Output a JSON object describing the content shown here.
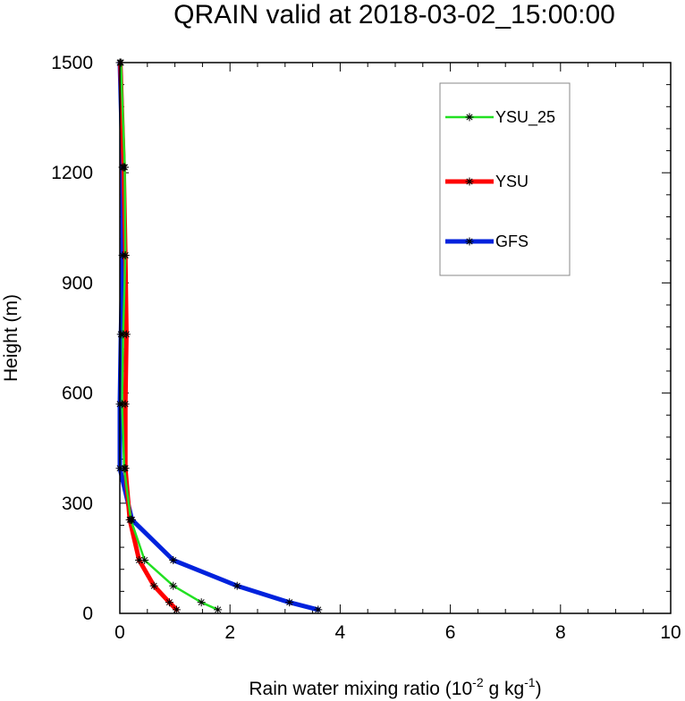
{
  "chart_data": {
    "type": "line",
    "title": "QRAIN valid at 2018-03-02_15:00:00",
    "xlabel_parts": {
      "base": "Rain water mixing ratio (10",
      "exp1": "-2",
      "mid": " g kg",
      "exp2": "-1",
      "end": ")"
    },
    "ylabel": "Height (m)",
    "xlim": [
      0,
      10
    ],
    "ylim": [
      0,
      1500
    ],
    "x_ticks": [
      0,
      2,
      4,
      6,
      8,
      10
    ],
    "y_ticks": [
      0,
      300,
      600,
      900,
      1200,
      1500
    ],
    "legend_position": "top-right",
    "series": [
      {
        "name": "YSU_25",
        "color": "#22e022",
        "width": 2.5,
        "points": [
          [
            1.78,
            10
          ],
          [
            1.48,
            30
          ],
          [
            0.97,
            75
          ],
          [
            0.45,
            145
          ],
          [
            0.2,
            255
          ],
          [
            0.08,
            395
          ],
          [
            0.04,
            570
          ],
          [
            0.06,
            760
          ],
          [
            0.1,
            975
          ],
          [
            0.09,
            1215
          ],
          [
            0.02,
            1500
          ]
        ]
      },
      {
        "name": "YSU",
        "color": "#ff0000",
        "width": 5,
        "points": [
          [
            1.03,
            10
          ],
          [
            0.9,
            30
          ],
          [
            0.62,
            75
          ],
          [
            0.35,
            145
          ],
          [
            0.18,
            255
          ],
          [
            0.1,
            395
          ],
          [
            0.1,
            570
          ],
          [
            0.12,
            760
          ],
          [
            0.1,
            975
          ],
          [
            0.07,
            1215
          ],
          [
            0.01,
            1500
          ]
        ]
      },
      {
        "name": "GFS",
        "color": "#0022dd",
        "width": 5,
        "points": [
          [
            3.6,
            10
          ],
          [
            3.08,
            30
          ],
          [
            2.13,
            75
          ],
          [
            0.97,
            145
          ],
          [
            0.22,
            255
          ],
          [
            0.0,
            395
          ],
          [
            0.0,
            570
          ],
          [
            0.02,
            760
          ],
          [
            0.05,
            975
          ],
          [
            0.05,
            1215
          ],
          [
            0.0,
            1500
          ]
        ]
      }
    ]
  }
}
